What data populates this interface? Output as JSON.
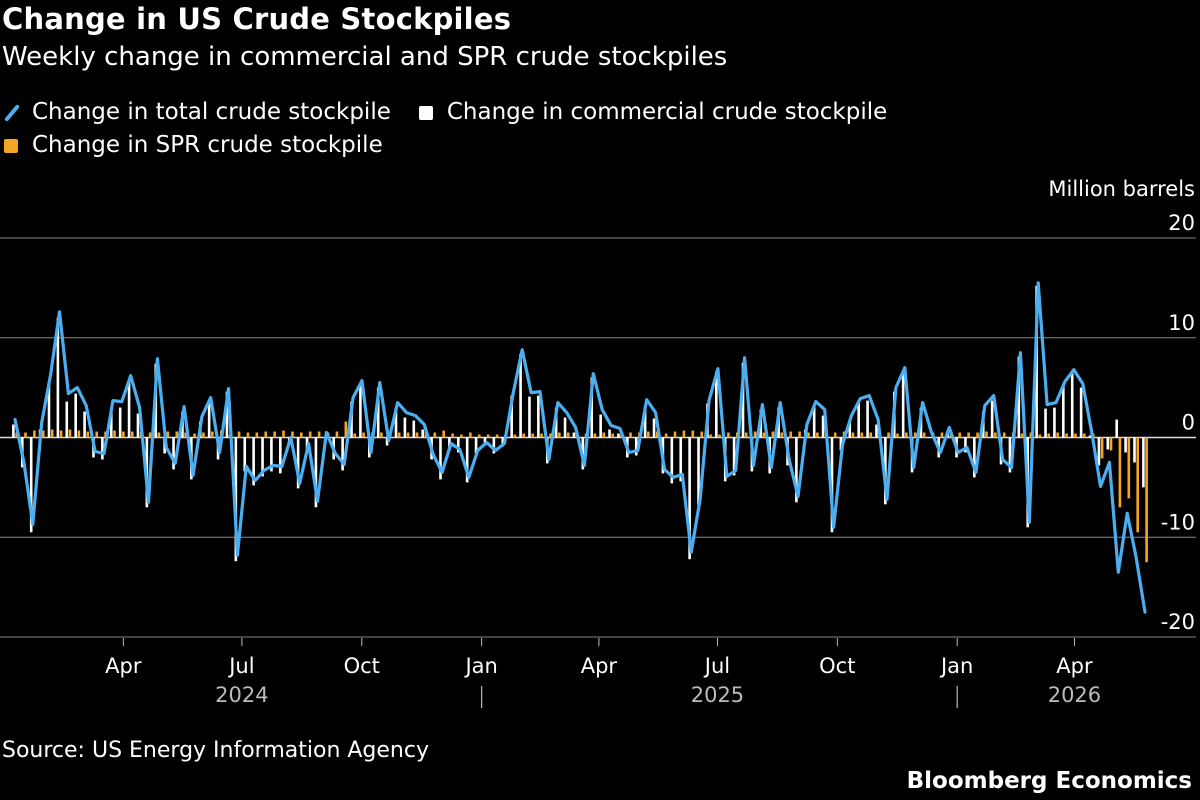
{
  "header": {
    "title": "Change in US Crude Stockpiles",
    "subtitle": "Weekly change in commercial and SPR crude stockpiles"
  },
  "legend": {
    "total": "Change in total crude stockpile",
    "commercial": "Change in commercial crude stockpile",
    "spr": "Change in SPR crude stockpile"
  },
  "footer": {
    "source": "Source: US Energy Information Agency",
    "brand": "Bloomberg Economics"
  },
  "colors": {
    "total": "#4aaef0",
    "commercial": "#ffffff",
    "spr": "#f5a623",
    "grid": "#888888",
    "background": "#000000"
  },
  "chart_data": {
    "type": "bar",
    "title": "Change in US Crude Stockpiles",
    "subtitle": "Weekly change in commercial and SPR crude stockpiles",
    "ylabel": "Million barrels",
    "ylim": [
      -20,
      20
    ],
    "yticks": [
      20,
      10,
      0,
      -10,
      -20
    ],
    "grid": true,
    "legend_position": "top-left",
    "x_start": "2024-01-05",
    "x_end": "2026-05-29",
    "xticks": [
      {
        "date": "2024-04-01",
        "label": "Apr"
      },
      {
        "date": "2024-07-01",
        "label": "Jul"
      },
      {
        "date": "2024-10-01",
        "label": "Oct"
      },
      {
        "date": "2025-01-01",
        "label": "Jan"
      },
      {
        "date": "2025-04-01",
        "label": "Apr"
      },
      {
        "date": "2025-07-01",
        "label": "Jul"
      },
      {
        "date": "2025-10-01",
        "label": "Oct"
      },
      {
        "date": "2026-01-01",
        "label": "Jan"
      },
      {
        "date": "2026-04-01",
        "label": "Apr"
      }
    ],
    "years": [
      {
        "date": "2024-07-01",
        "label": "2024"
      },
      {
        "date": "2025-07-01",
        "label": "2025"
      },
      {
        "date": "2026-04-01",
        "label": "2026"
      }
    ],
    "year_separators": [
      "2025-01-01",
      "2026-01-01"
    ],
    "series": [
      {
        "name": "Change in total crude stockpile",
        "type": "line",
        "values": [
          1.8,
          -2.5,
          -8.7,
          1.5,
          6.3,
          12.6,
          4.4,
          5.0,
          3.2,
          -1.4,
          -1.6,
          3.7,
          3.6,
          6.2,
          3.0,
          -6.5,
          7.9,
          -1.0,
          -2.6,
          3.1,
          -3.8,
          2.1,
          4.0,
          -1.5,
          4.9,
          -11.8,
          -2.9,
          -4.3,
          -3.3,
          -2.8,
          -2.9,
          0.0,
          -4.6,
          -0.6,
          -6.4,
          0.5,
          -1.6,
          -2.7,
          4.0,
          5.7,
          -1.5,
          5.5,
          -0.3,
          3.5,
          2.5,
          2.2,
          1.3,
          -1.7,
          -3.5,
          -0.6,
          -1.2,
          -4.0,
          -1.3,
          -0.5,
          -1.3,
          -0.6,
          4.5,
          8.8,
          4.5,
          4.6,
          -2.2,
          3.5,
          2.5,
          1.0,
          -2.8,
          6.4,
          2.8,
          1.2,
          0.9,
          -1.5,
          -1.3,
          3.8,
          2.5,
          -3.2,
          -4.0,
          -3.7,
          -11.5,
          -6.2,
          3.7,
          6.9,
          -3.9,
          -3.3,
          8.0,
          -2.8,
          3.3,
          -3.0,
          3.5,
          -2.2,
          -5.9,
          1.3,
          3.6,
          2.8,
          -9.0,
          -0.7,
          2.2,
          3.9,
          4.2,
          1.8,
          -6.2,
          5.0,
          7.0,
          -3.0,
          3.5,
          0.5,
          -1.5,
          1.0,
          -1.5,
          -1.0,
          -3.5,
          3.2,
          4.2,
          -2.2,
          -3.0,
          8.5,
          -8.5,
          15.5,
          3.3,
          3.5,
          5.6,
          6.8,
          5.4,
          0.6,
          -4.9,
          -2.5,
          -13.5,
          -7.6,
          -12.0,
          -17.5
        ]
      },
      {
        "name": "Change in commercial crude stockpile",
        "type": "bar",
        "values": [
          1.3,
          -3.0,
          -9.5,
          0.8,
          5.5,
          12.0,
          3.6,
          4.4,
          2.6,
          -2.0,
          -2.2,
          3.0,
          3.0,
          5.6,
          2.4,
          -7.0,
          7.4,
          -1.6,
          -3.2,
          2.6,
          -4.2,
          1.6,
          3.4,
          -2.2,
          4.6,
          -12.4,
          -3.4,
          -4.8,
          -3.9,
          -3.4,
          -3.6,
          -0.6,
          -5.1,
          -1.2,
          -7.0,
          0.0,
          -2.2,
          -3.3,
          3.6,
          5.2,
          -2.0,
          5.0,
          -0.8,
          3.0,
          2.0,
          1.7,
          0.8,
          -2.2,
          -4.2,
          -1.0,
          -1.5,
          -4.5,
          -1.6,
          -0.8,
          -1.6,
          -0.9,
          4.2,
          8.4,
          4.1,
          4.2,
          -2.6,
          3.0,
          2.0,
          0.5,
          -3.2,
          6.0,
          2.3,
          0.8,
          0.4,
          -2.0,
          -1.8,
          3.2,
          1.9,
          -3.6,
          -4.6,
          -4.4,
          -12.2,
          -6.8,
          3.4,
          6.6,
          -4.4,
          -3.8,
          7.5,
          -3.4,
          2.8,
          -3.6,
          3.0,
          -2.8,
          -6.5,
          0.8,
          3.1,
          2.2,
          -9.5,
          -1.3,
          1.7,
          3.4,
          3.7,
          1.3,
          -6.7,
          4.6,
          6.5,
          -3.5,
          3.0,
          0.0,
          -2.0,
          0.5,
          -2.0,
          -1.5,
          -4.0,
          2.6,
          3.7,
          -2.7,
          -3.5,
          8.1,
          -9.0,
          15.2,
          2.9,
          3.0,
          5.2,
          6.4,
          5.0,
          0.2,
          -2.8,
          -1.2,
          1.8,
          -1.5,
          -2.5,
          -5.0
        ]
      },
      {
        "name": "Change in SPR crude stockpile",
        "type": "bar",
        "values": [
          0.5,
          0.5,
          0.7,
          0.7,
          0.8,
          0.7,
          0.8,
          0.7,
          0.6,
          0.6,
          0.6,
          0.7,
          0.6,
          0.6,
          0.6,
          0.5,
          0.5,
          0.6,
          0.6,
          0.5,
          0.4,
          0.5,
          0.6,
          0.7,
          0.3,
          0.6,
          0.5,
          0.5,
          0.6,
          0.6,
          0.7,
          0.6,
          0.5,
          0.6,
          0.6,
          0.5,
          0.6,
          1.6,
          0.4,
          0.5,
          0.5,
          0.5,
          0.5,
          0.5,
          0.5,
          0.5,
          1.0,
          0.5,
          0.7,
          0.4,
          0.3,
          0.5,
          0.3,
          0.3,
          0.3,
          0.3,
          0.3,
          0.4,
          0.4,
          0.4,
          0.4,
          0.5,
          0.5,
          0.5,
          0.4,
          0.4,
          0.5,
          0.4,
          0.5,
          0.5,
          0.5,
          0.6,
          0.6,
          0.4,
          0.6,
          0.7,
          0.7,
          0.6,
          0.3,
          0.3,
          0.5,
          0.5,
          0.5,
          0.6,
          0.5,
          0.6,
          0.5,
          0.6,
          0.6,
          0.5,
          0.5,
          0.6,
          0.5,
          0.6,
          0.5,
          0.5,
          0.5,
          0.5,
          0.5,
          0.4,
          0.5,
          0.5,
          0.5,
          0.5,
          0.5,
          0.5,
          0.5,
          0.5,
          0.5,
          0.6,
          0.5,
          0.5,
          0.5,
          0.4,
          0.5,
          0.3,
          0.4,
          0.5,
          0.4,
          0.4,
          0.4,
          0.4,
          -2.1,
          -1.3,
          -7.0,
          -6.1,
          -9.5,
          -12.5
        ]
      }
    ]
  }
}
